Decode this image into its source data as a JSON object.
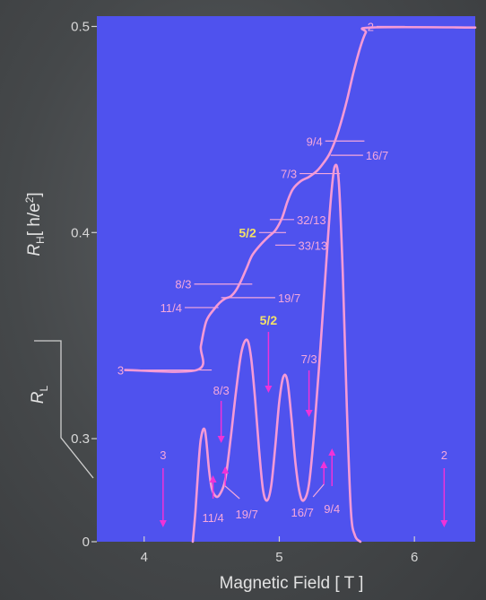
{
  "chart_data": {
    "type": "line",
    "title": "",
    "xlabel": "Magnetic Field [ T ]",
    "ylabel_hall": "R_H[ h/e²]",
    "ylabel_hall_parts": {
      "main": "R",
      "sub": "H",
      "rest": "[ h/e",
      "sup": "2",
      "end": "]"
    },
    "ylabel_long_parts": {
      "main": "R",
      "sub": "L"
    },
    "xlim": [
      3.65,
      6.45
    ],
    "ylim": [
      0.25,
      0.505
    ],
    "x_ticks": [
      4,
      5,
      6
    ],
    "x_tick_labels": [
      "4",
      "5",
      "6"
    ],
    "y_ticks": [
      0.25,
      0.3,
      0.4,
      0.5
    ],
    "y_tick_labels": [
      "0",
      "0.3",
      "0.4",
      "0.5"
    ],
    "colors": {
      "plot_bg": "#4f52ee",
      "curve": "#f59ad6",
      "label": "#f5a8dc",
      "highlight": "#f2e06a",
      "arrow": "#f032d8"
    },
    "series": [
      {
        "name": "",
        "kind": "hall",
        "x": [
          3.86,
          4.39,
          4.42,
          4.46,
          4.52,
          4.56,
          4.6,
          4.64,
          4.68,
          4.72,
          4.76,
          4.8,
          4.86,
          4.92,
          4.97,
          5.02,
          5.06,
          5.1,
          5.16,
          5.22,
          5.28,
          5.33,
          5.37,
          5.41,
          5.45,
          5.5,
          5.55,
          5.6,
          5.64,
          5.68,
          6.45
        ],
        "y": [
          0.3333,
          0.3333,
          0.345,
          0.357,
          0.363,
          0.366,
          0.368,
          0.369,
          0.372,
          0.377,
          0.383,
          0.389,
          0.394,
          0.398,
          0.401,
          0.407,
          0.415,
          0.421,
          0.425,
          0.427,
          0.43,
          0.434,
          0.438,
          0.444,
          0.452,
          0.464,
          0.478,
          0.49,
          0.497,
          0.4995,
          0.4995
        ]
      },
      {
        "name": "",
        "kind": "longitudinal",
        "x": [
          4.36,
          4.38,
          4.4,
          4.42,
          4.45,
          4.48,
          4.5,
          4.53,
          4.56,
          4.6,
          4.64,
          4.68,
          4.72,
          4.76,
          4.79,
          4.82,
          4.85,
          4.88,
          4.91,
          4.94,
          4.97,
          5.0,
          5.03,
          5.06,
          5.09,
          5.12,
          5.15,
          5.18,
          5.22,
          5.26,
          5.3,
          5.34,
          5.38,
          5.41,
          5.44,
          5.47,
          5.5,
          5.53,
          5.56,
          5.6
        ],
        "y": [
          0.25,
          0.265,
          0.285,
          0.3,
          0.304,
          0.285,
          0.276,
          0.272,
          0.273,
          0.28,
          0.3,
          0.323,
          0.342,
          0.348,
          0.34,
          0.32,
          0.295,
          0.275,
          0.27,
          0.277,
          0.296,
          0.318,
          0.33,
          0.328,
          0.31,
          0.288,
          0.274,
          0.27,
          0.278,
          0.305,
          0.34,
          0.378,
          0.415,
          0.432,
          0.425,
          0.38,
          0.315,
          0.265,
          0.253,
          0.25
        ]
      }
    ],
    "plateau_marks": [
      {
        "label": "3",
        "x1": 3.87,
        "x2": 4.5,
        "y": 0.3333,
        "side": "left"
      },
      {
        "label": "11/4",
        "x1": 4.3,
        "x2": 4.55,
        "y": 0.3636,
        "side": "left"
      },
      {
        "label": "8/3",
        "x1": 4.37,
        "x2": 4.8,
        "y": 0.375,
        "side": "left"
      },
      {
        "label": "19/7",
        "x1": 4.57,
        "x2": 4.97,
        "y": 0.3684,
        "side": "right"
      },
      {
        "label": "5/2",
        "x1": 4.85,
        "x2": 5.05,
        "y": 0.4,
        "side": "left",
        "highlight": true
      },
      {
        "label": "33/13",
        "x1": 4.97,
        "x2": 5.12,
        "y": 0.3939,
        "side": "right"
      },
      {
        "label": "32/13",
        "x1": 4.93,
        "x2": 5.11,
        "y": 0.4063,
        "side": "right"
      },
      {
        "label": "7/3",
        "x1": 5.15,
        "x2": 5.45,
        "y": 0.4286,
        "side": "left"
      },
      {
        "label": "9/4",
        "x1": 5.34,
        "x2": 5.63,
        "y": 0.4444,
        "side": "left"
      },
      {
        "label": "16/7",
        "x1": 5.38,
        "x2": 5.62,
        "y": 0.4375,
        "side": "right"
      },
      {
        "label": "2",
        "x1": 5.72,
        "x2": 5.93,
        "y": 0.5,
        "side": "left"
      }
    ],
    "arrow_marks": [
      {
        "label": "3",
        "x": 4.14,
        "dir": "down",
        "label_pos": "above"
      },
      {
        "label": "11/4",
        "x": 4.51,
        "dir": "up",
        "label_pos": "below"
      },
      {
        "label": "8/3",
        "x": 4.57,
        "dir": "down",
        "label_pos": "above"
      },
      {
        "label": "19/7",
        "x": 4.6,
        "dir": "up",
        "label_pos": "below-bent"
      },
      {
        "label": "5/2",
        "x": 4.92,
        "dir": "down",
        "label_pos": "above",
        "highlight": true
      },
      {
        "label": "7/3",
        "x": 5.22,
        "dir": "down",
        "label_pos": "above"
      },
      {
        "label": "16/7",
        "x": 5.33,
        "dir": "up",
        "label_pos": "below-bent"
      },
      {
        "label": "9/4",
        "x": 5.39,
        "dir": "up",
        "label_pos": "below"
      },
      {
        "label": "2",
        "x": 6.22,
        "dir": "down",
        "label_pos": "above"
      }
    ]
  }
}
